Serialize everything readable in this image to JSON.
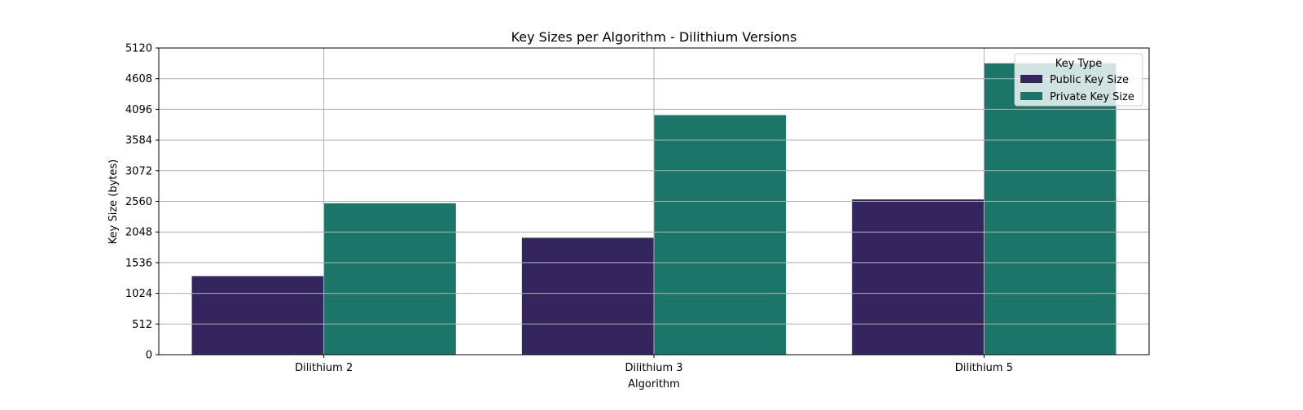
{
  "chart_data": {
    "type": "bar",
    "title": "Key Sizes per Algorithm - Dilithium Versions",
    "xlabel": "Algorithm",
    "ylabel": "Key Size (bytes)",
    "categories": [
      "Dilithium 2",
      "Dilithium 3",
      "Dilithium 5"
    ],
    "series": [
      {
        "name": "Public Key Size",
        "values": [
          1312,
          1952,
          2592
        ],
        "color": "#35255e"
      },
      {
        "name": "Private Key Size",
        "values": [
          2528,
          4000,
          4864
        ],
        "color": "#1b7569"
      }
    ],
    "ylim": [
      0,
      5120
    ],
    "yticks": [
      0,
      512,
      1024,
      1536,
      2048,
      2560,
      3072,
      3584,
      4096,
      4608,
      5120
    ],
    "grid": true,
    "legend": {
      "title": "Key Type",
      "placement": "top-right"
    }
  }
}
